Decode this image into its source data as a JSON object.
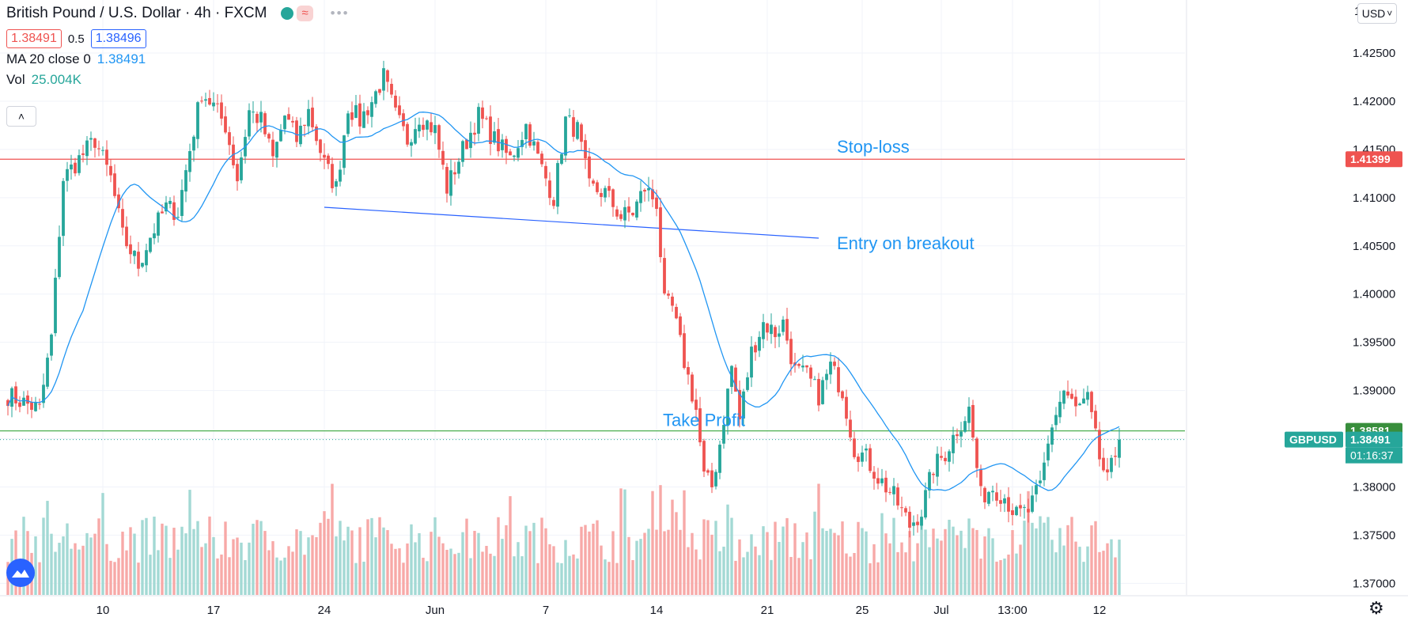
{
  "header": {
    "title": "British Pound / U.S. Dollar · 4h · FXCM",
    "approx_symbol": "≈",
    "more_symbol": "•••",
    "bid": "1.38491",
    "spread": "0.5",
    "ask": "1.38496",
    "ma_label": "MA 20 close 0",
    "ma_value": "1.38491",
    "vol_label": "Vol",
    "vol_value": "25.004K",
    "collapse_symbol": "˄",
    "currency_button": "USD",
    "currency_caret": "˅"
  },
  "colors": {
    "up": "#26a69a",
    "down": "#ef5350",
    "ma": "#2196f3",
    "annotation_text": "#2196f3",
    "stop_line": "#ef5350",
    "tp_line": "#4caf50",
    "trend_line": "#2962ff"
  },
  "annotations": {
    "stop_loss": "Stop-loss",
    "entry": "Entry on breakout",
    "take_profit": "Take Profit"
  },
  "price_tags": {
    "stop": "1.41399",
    "tp": "1.38581",
    "symbol": "GBPUSD",
    "last": "1.38491",
    "countdown": "01:16:37"
  },
  "chart_data": {
    "type": "candlestick",
    "y_axis": {
      "ticks": [
        1.37,
        1.375,
        1.38,
        1.385,
        1.39,
        1.395,
        1.4,
        1.405,
        1.41,
        1.415,
        1.42,
        1.425
      ],
      "tick_labels": [
        "1.37000",
        "1.37500",
        "1.38000",
        "",
        "1.39000",
        "1.39500",
        "1.40000",
        "1.40500",
        "1.41000",
        "1.41500",
        "1.42000",
        "1.42500"
      ],
      "top_partial_label": "1",
      "range": [
        1.3665,
        1.4305
      ]
    },
    "x_axis": {
      "labels": [
        "10",
        "17",
        "24",
        "Jun",
        "7",
        "14",
        "21",
        "25",
        "Jul",
        "13:00",
        "12"
      ],
      "label_positions": [
        8,
        36,
        64,
        92,
        120,
        148,
        176,
        200,
        220,
        238,
        260
      ]
    },
    "horizontal_lines": [
      {
        "name": "Stop-loss",
        "value": 1.41399
      },
      {
        "name": "Take Profit",
        "value": 1.38581
      }
    ],
    "trend_line": {
      "from": [
        80,
        1.409
      ],
      "to": [
        205,
        1.4058
      ]
    },
    "last_price": 1.38491,
    "waypoints": [
      [
        0,
        1.3895
      ],
      [
        8,
        1.388
      ],
      [
        11,
        1.3955
      ],
      [
        14,
        1.412
      ],
      [
        18,
        1.414
      ],
      [
        22,
        1.416
      ],
      [
        26,
        1.412
      ],
      [
        29,
        1.406
      ],
      [
        33,
        1.403
      ],
      [
        36,
        1.406
      ],
      [
        40,
        1.409
      ],
      [
        43,
        1.4085
      ],
      [
        46,
        1.415
      ],
      [
        49,
        1.421
      ],
      [
        52,
        1.4195
      ],
      [
        55,
        1.4175
      ],
      [
        58,
        1.412
      ],
      [
        61,
        1.419
      ],
      [
        64,
        1.418
      ],
      [
        67,
        1.414
      ],
      [
        70,
        1.4185
      ],
      [
        73,
        1.416
      ],
      [
        76,
        1.419
      ],
      [
        80,
        1.4135
      ],
      [
        83,
        1.411
      ],
      [
        86,
        1.4195
      ],
      [
        89,
        1.418
      ],
      [
        92,
        1.42
      ],
      [
        95,
        1.4225
      ],
      [
        98,
        1.4185
      ],
      [
        101,
        1.416
      ],
      [
        104,
        1.4185
      ],
      [
        108,
        1.417
      ],
      [
        111,
        1.411
      ],
      [
        115,
        1.415
      ],
      [
        119,
        1.4185
      ],
      [
        123,
        1.416
      ],
      [
        127,
        1.414
      ],
      [
        131,
        1.4175
      ],
      [
        135,
        1.413
      ],
      [
        138,
        1.41
      ],
      [
        141,
        1.418
      ],
      [
        144,
        1.417
      ],
      [
        147,
        1.411
      ],
      [
        151,
        1.4105
      ],
      [
        155,
        1.408
      ],
      [
        158,
        1.4085
      ],
      [
        161,
        1.411
      ],
      [
        164,
        1.4095
      ],
      [
        166,
        1.399
      ],
      [
        168,
        1.3985
      ],
      [
        171,
        1.393
      ],
      [
        174,
        1.388
      ],
      [
        176,
        1.381
      ],
      [
        178,
        1.38
      ],
      [
        180,
        1.3845
      ],
      [
        183,
        1.3925
      ],
      [
        185,
        1.387
      ],
      [
        188,
        1.394
      ],
      [
        191,
        1.397
      ],
      [
        194,
        1.396
      ],
      [
        196,
        1.397
      ],
      [
        199,
        1.392
      ],
      [
        202,
        1.3915
      ],
      [
        205,
        1.3895
      ],
      [
        208,
        1.3925
      ],
      [
        211,
        1.39
      ],
      [
        214,
        1.384
      ],
      [
        217,
        1.383
      ],
      [
        220,
        1.381
      ],
      [
        224,
        1.379
      ],
      [
        228,
        1.376
      ],
      [
        231,
        1.3775
      ],
      [
        234,
        1.382
      ],
      [
        237,
        1.3835
      ],
      [
        240,
        1.386
      ],
      [
        243,
        1.388
      ],
      [
        246,
        1.379
      ],
      [
        249,
        1.38
      ],
      [
        252,
        1.379
      ],
      [
        255,
        1.377
      ],
      [
        258,
        1.3775
      ],
      [
        261,
        1.38
      ],
      [
        264,
        1.3865
      ],
      [
        267,
        1.39
      ],
      [
        270,
        1.388
      ],
      [
        273,
        1.389
      ],
      [
        276,
        1.383
      ],
      [
        278,
        1.3805
      ],
      [
        281,
        1.3849
      ]
    ],
    "ma_period": 20
  }
}
